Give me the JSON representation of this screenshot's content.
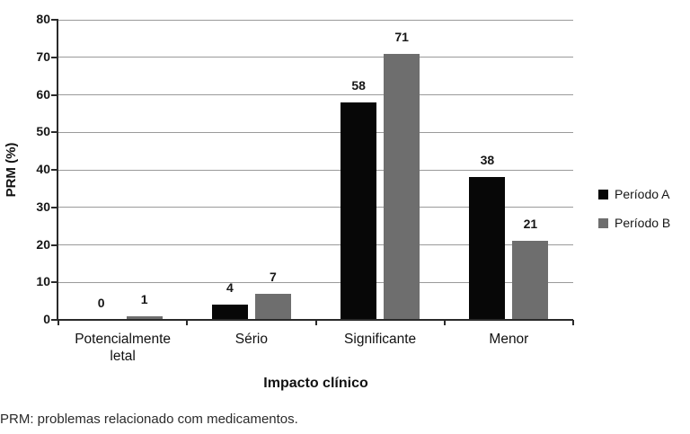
{
  "chart_data": {
    "type": "bar",
    "title": "",
    "categories": [
      "Potencialmente letal",
      "Sério",
      "Significante",
      "Menor"
    ],
    "series": [
      {
        "name": "Período A",
        "color": "#070707",
        "values": [
          0,
          4,
          58,
          38
        ]
      },
      {
        "name": "Período B",
        "color": "#6e6e6e",
        "values": [
          1,
          7,
          71,
          21
        ]
      }
    ],
    "xlabel": "Impacto clínico",
    "ylabel": "PRM (%)",
    "ylim": [
      0,
      80
    ],
    "ytick_step": 10,
    "grid": "horizontal",
    "legend_position": "right"
  },
  "footnote": "PRM: problemas relacionado com medicamentos."
}
